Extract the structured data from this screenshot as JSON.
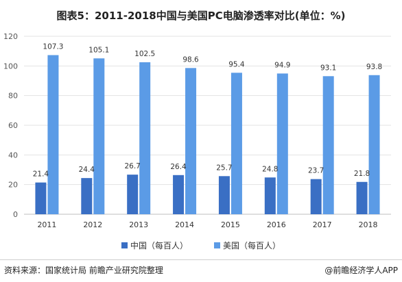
{
  "colors": {
    "china": "#3a6fc4",
    "usa": "#5b9be6",
    "grid": "#e3e3e3",
    "axis": "#bfbfbf"
  },
  "footer": {
    "source": "资料来源：国家统计局 前瞻产业研究院整理",
    "brand": "@前瞻经济学人APP"
  },
  "chart_data": {
    "type": "bar",
    "title": "图表5：2011-2018中国与美国PC电脑渗透率对比(单位：%)",
    "categories": [
      "2011",
      "2012",
      "2013",
      "2014",
      "2015",
      "2016",
      "2017",
      "2018"
    ],
    "series": [
      {
        "name": "中国（每百人）",
        "values": [
          21.4,
          24.4,
          26.7,
          26.4,
          25.7,
          24.8,
          23.7,
          21.8
        ]
      },
      {
        "name": "美国（每百人）",
        "values": [
          107.3,
          105.1,
          102.5,
          98.6,
          95.4,
          94.9,
          93.1,
          93.8
        ]
      }
    ],
    "ylim": [
      0,
      120
    ],
    "yticks": [
      0,
      20,
      40,
      60,
      80,
      100,
      120
    ],
    "grid": true,
    "legend": "bottom"
  }
}
